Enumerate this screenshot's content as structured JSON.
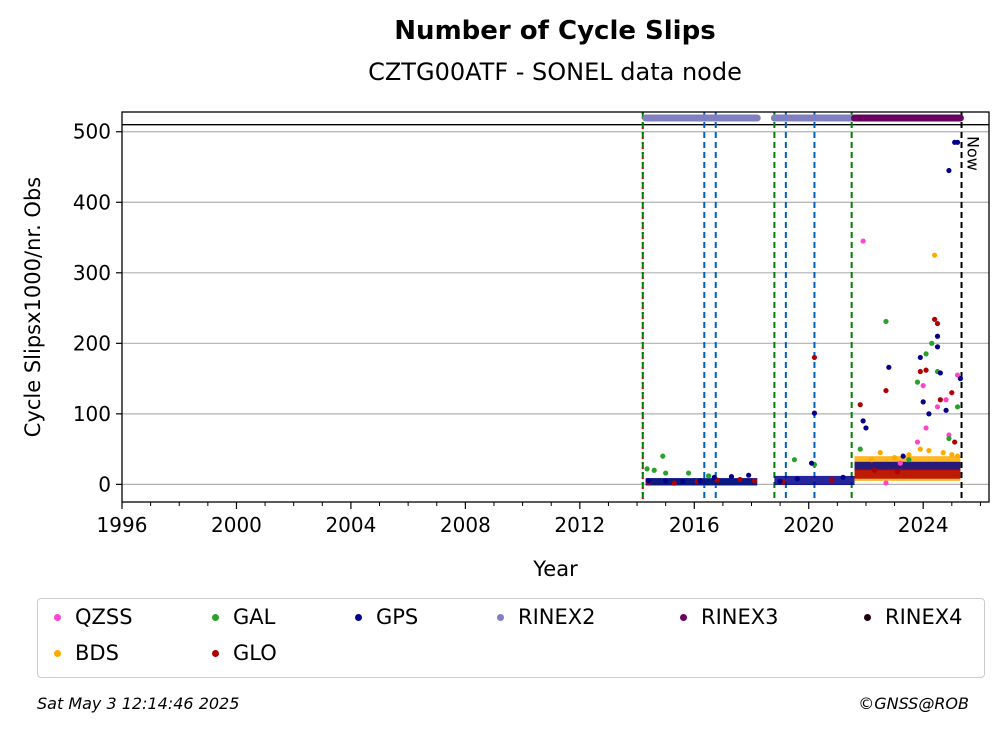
{
  "header": {
    "title": "Number of Cycle Slips",
    "subtitle": "CZTG00ATF - SONEL data node"
  },
  "chart_data": {
    "type": "scatter",
    "xlabel": "Year",
    "ylabel": "Cycle Slipsx1000/nr. Obs",
    "xlim": [
      1996,
      2026.3
    ],
    "ylim": [
      -25,
      528
    ],
    "x_ticks": [
      1996,
      2000,
      2004,
      2008,
      2012,
      2016,
      2020,
      2024
    ],
    "x_tick_labels": [
      "1996",
      "2000",
      "2004",
      "2008",
      "2012",
      "2016",
      "2020",
      "2024"
    ],
    "y_ticks": [
      0,
      100,
      200,
      300,
      400,
      500
    ],
    "y_tick_labels": [
      "0",
      "100",
      "200",
      "300",
      "400",
      "500"
    ],
    "grid": "horizontal",
    "legend_placement": "below",
    "now_label": "Now",
    "now_year": 2025.34,
    "reference_line_y": 510,
    "vertical_events": [
      {
        "year": 2014.2,
        "color": "#cc0000",
        "style": "dotted"
      },
      {
        "year": 2014.2,
        "color": "#008000",
        "style": "dashed"
      },
      {
        "year": 2016.35,
        "color": "#0060c0",
        "style": "dashed"
      },
      {
        "year": 2016.75,
        "color": "#0060c0",
        "style": "dashed"
      },
      {
        "year": 2018.8,
        "color": "#008000",
        "style": "dashed"
      },
      {
        "year": 2019.2,
        "color": "#0060c0",
        "style": "dashed"
      },
      {
        "year": 2020.2,
        "color": "#0060c0",
        "style": "dashed"
      },
      {
        "year": 2021.5,
        "color": "#008000",
        "style": "dashed"
      },
      {
        "year": 2025.34,
        "color": "#000000",
        "style": "dashed"
      }
    ],
    "rinex_bars": [
      {
        "name": "RINEX2",
        "start": 2014.3,
        "end": 2018.2
      },
      {
        "name": "RINEX2",
        "start": 2018.8,
        "end": 2021.8
      },
      {
        "name": "RINEX3",
        "start": 2021.6,
        "end": 2025.3
      }
    ],
    "series": [
      {
        "name": "QZSS",
        "color": "#ff44cc",
        "points": [
          [
            2021.9,
            345
          ],
          [
            2022.7,
            2
          ],
          [
            2023.8,
            60
          ],
          [
            2024.0,
            140
          ],
          [
            2024.1,
            80
          ],
          [
            2024.5,
            110
          ],
          [
            2024.8,
            120
          ],
          [
            2025.2,
            155
          ],
          [
            2023.2,
            30
          ],
          [
            2024.9,
            70
          ]
        ]
      },
      {
        "name": "BDS",
        "color": "#ffaa00",
        "points": [
          [
            2022.5,
            45
          ],
          [
            2023.0,
            38
          ],
          [
            2023.5,
            42
          ],
          [
            2023.9,
            50
          ],
          [
            2024.4,
            325
          ],
          [
            2024.7,
            45
          ],
          [
            2025.0,
            42
          ],
          [
            2025.2,
            40
          ],
          [
            2022.2,
            35
          ],
          [
            2024.2,
            48
          ]
        ]
      },
      {
        "name": "GAL",
        "color": "#2ca02c",
        "points": [
          [
            2014.35,
            22
          ],
          [
            2014.6,
            20
          ],
          [
            2014.9,
            40
          ],
          [
            2015.0,
            16
          ],
          [
            2015.8,
            16
          ],
          [
            2016.5,
            12
          ],
          [
            2019.5,
            35
          ],
          [
            2020.2,
            28
          ],
          [
            2021.8,
            50
          ],
          [
            2022.7,
            231
          ],
          [
            2023.8,
            145
          ],
          [
            2024.3,
            200
          ],
          [
            2024.5,
            160
          ],
          [
            2024.9,
            65
          ],
          [
            2025.2,
            110
          ],
          [
            2023.5,
            35
          ],
          [
            2024.1,
            185
          ]
        ]
      },
      {
        "name": "GLO",
        "color": "#b00000",
        "points": [
          [
            2014.4,
            3
          ],
          [
            2015.3,
            2
          ],
          [
            2016.1,
            4
          ],
          [
            2016.8,
            6
          ],
          [
            2017.6,
            7
          ],
          [
            2018.1,
            5
          ],
          [
            2019.1,
            3
          ],
          [
            2020.2,
            180
          ],
          [
            2020.8,
            6
          ],
          [
            2021.8,
            113
          ],
          [
            2022.7,
            133
          ],
          [
            2023.9,
            160
          ],
          [
            2024.1,
            162
          ],
          [
            2024.4,
            234
          ],
          [
            2024.5,
            228
          ],
          [
            2024.6,
            120
          ],
          [
            2025.0,
            130
          ],
          [
            2025.1,
            60
          ],
          [
            2022.3,
            20
          ],
          [
            2023.1,
            18
          ]
        ]
      },
      {
        "name": "GPS",
        "color": "#00008b",
        "points": [
          [
            2014.4,
            5
          ],
          [
            2015.0,
            5
          ],
          [
            2015.6,
            4
          ],
          [
            2016.2,
            5
          ],
          [
            2016.7,
            10
          ],
          [
            2017.3,
            11
          ],
          [
            2017.9,
            13
          ],
          [
            2019.0,
            4
          ],
          [
            2019.6,
            8
          ],
          [
            2020.1,
            30
          ],
          [
            2020.2,
            101
          ],
          [
            2021.2,
            10
          ],
          [
            2021.9,
            90
          ],
          [
            2022.0,
            80
          ],
          [
            2022.8,
            166
          ],
          [
            2023.3,
            40
          ],
          [
            2023.9,
            180
          ],
          [
            2024.0,
            117
          ],
          [
            2024.2,
            100
          ],
          [
            2024.5,
            195
          ],
          [
            2024.5,
            210
          ],
          [
            2024.6,
            158
          ],
          [
            2024.9,
            445
          ],
          [
            2025.1,
            485
          ],
          [
            2025.2,
            485
          ],
          [
            2025.3,
            150
          ],
          [
            2024.8,
            105
          ]
        ]
      }
    ]
  },
  "legend": {
    "items": [
      {
        "label": "QZSS",
        "color": "#ff44cc"
      },
      {
        "label": "GAL",
        "color": "#2ca02c"
      },
      {
        "label": "GPS",
        "color": "#00008b"
      },
      {
        "label": "RINEX2",
        "color": "#8080c0"
      },
      {
        "label": "RINEX3",
        "color": "#6a0060"
      },
      {
        "label": "RINEX4",
        "color": "#200010"
      },
      {
        "label": "BDS",
        "color": "#ffaa00"
      },
      {
        "label": "GLO",
        "color": "#b00000"
      }
    ]
  },
  "footer": {
    "date": "Sat May  3 12:14:46 2025",
    "credit": "©GNSS@ROB"
  }
}
